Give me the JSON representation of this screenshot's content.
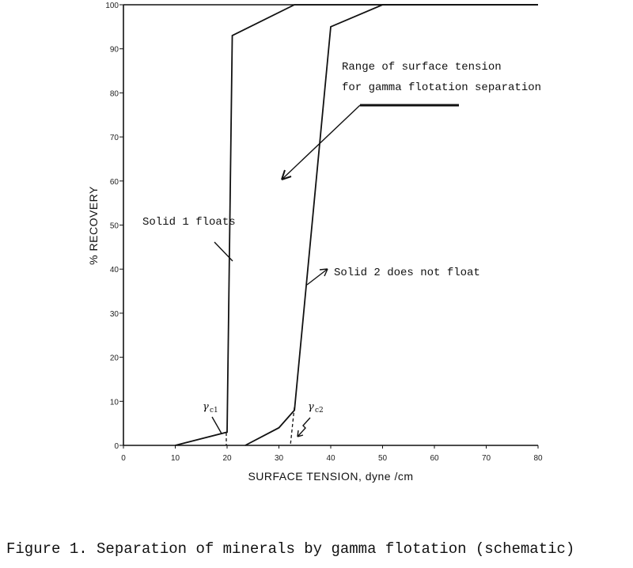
{
  "chart_data": {
    "type": "line",
    "xlabel": "SURFACE TENSION, dyne /cm",
    "ylabel": "% RECOVERY",
    "xlim": [
      0,
      80
    ],
    "ylim": [
      0,
      100
    ],
    "xticks": [
      0,
      10,
      20,
      30,
      40,
      50,
      60,
      70,
      80
    ],
    "yticks": [
      0,
      10,
      20,
      30,
      40,
      50,
      60,
      70,
      80,
      90,
      100
    ],
    "x_tick_labels": [
      "0",
      "10",
      "20",
      "30",
      "40",
      "50",
      "60",
      "70",
      "80"
    ],
    "y_tick_labels": [
      "0",
      "10",
      "20",
      "30",
      "40",
      "50",
      "60",
      "70",
      "80",
      "90",
      "100"
    ],
    "series": [
      {
        "points": [
          [
            10,
            0
          ],
          [
            20,
            3
          ],
          [
            21,
            93
          ],
          [
            33,
            100
          ],
          [
            80,
            100
          ]
        ]
      },
      {
        "points": [
          [
            23.5,
            0
          ],
          [
            30,
            4
          ],
          [
            33,
            8
          ],
          [
            40,
            95
          ],
          [
            50,
            100
          ],
          [
            80,
            100
          ]
        ]
      }
    ],
    "annotations": {
      "range_label_line1": "Range of surface tension",
      "range_label_line2": "for gamma flotation separation",
      "solid1": "Solid 1 floats",
      "solid2": "Solid 2 does not float",
      "gamma1_symbol": "γ",
      "gamma1_sub": "c1",
      "gamma2_symbol": "γ",
      "gamma2_sub": "c2"
    }
  },
  "caption": "Figure 1. Separation of minerals by gamma flotation (schematic)"
}
